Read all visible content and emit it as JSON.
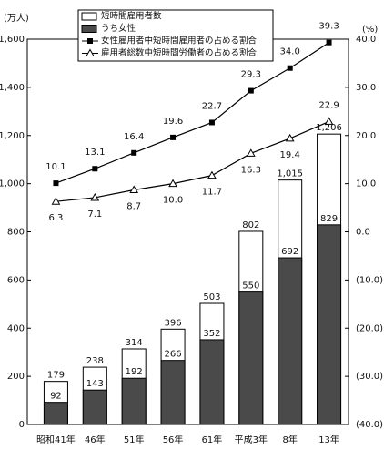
{
  "chart_data": {
    "type": "bar",
    "y_unit_label": "(万人)",
    "y2_unit_label": "(%)",
    "categories": [
      "昭和41年",
      "46年",
      "51年",
      "56年",
      "61年",
      "平成3年",
      "8年",
      "13年"
    ],
    "series": [
      {
        "name": "短時間雇用者数",
        "type": "bar",
        "color": "#ffffff",
        "values": [
          179,
          238,
          314,
          396,
          503,
          802,
          1015,
          1206
        ],
        "value_labels": [
          "179",
          "238",
          "314",
          "396",
          "503",
          "802",
          "1,015",
          "1,206"
        ]
      },
      {
        "name": "うち女性",
        "type": "bar",
        "color": "#4a4a4a",
        "values": [
          92,
          143,
          192,
          266,
          352,
          550,
          692,
          829
        ]
      },
      {
        "name": "女性雇用者中短時間雇用者の占める割合",
        "type": "line",
        "axis": "y2",
        "marker": "square",
        "color": "#000000",
        "values": [
          10.1,
          13.1,
          16.4,
          19.6,
          22.7,
          29.3,
          34.0,
          39.3
        ],
        "value_labels": [
          "10.1",
          "13.1",
          "16.4",
          "19.6",
          "22.7",
          "29.3",
          "34.0",
          "39.3"
        ]
      },
      {
        "name": "雇用者総数中短時間労働者の占める割合",
        "type": "line",
        "axis": "y2",
        "marker": "triangle",
        "color": "#000000",
        "values": [
          6.3,
          7.1,
          8.7,
          10.0,
          11.7,
          16.3,
          19.4,
          22.9
        ],
        "value_labels": [
          "6.3",
          "7.1",
          "8.7",
          "10.0",
          "11.7",
          "16.3",
          "19.4",
          "22.9"
        ]
      }
    ],
    "ylim": [
      0,
      1600
    ],
    "yticks": [
      0,
      200,
      400,
      600,
      800,
      {
        "value": 1000,
        "label": "1,000"
      },
      {
        "value": 1200,
        "label": "1,200"
      },
      {
        "value": 1400,
        "label": "1,400"
      },
      {
        "value": 1600,
        "label": "1,600"
      }
    ],
    "y2lim": [
      -40,
      40
    ],
    "y2ticks": [
      {
        "value": -40,
        "label": "(40.0)"
      },
      {
        "value": -30,
        "label": "(30.0)"
      },
      {
        "value": -20,
        "label": "(20.0)"
      },
      {
        "value": -10,
        "label": "(10.0)"
      },
      {
        "value": 0,
        "label": "0.0"
      },
      {
        "value": 10,
        "label": "10.0"
      },
      {
        "value": 20,
        "label": "20.0"
      },
      {
        "value": 30,
        "label": "30.0"
      },
      {
        "value": 40,
        "label": "40.0"
      }
    ]
  }
}
